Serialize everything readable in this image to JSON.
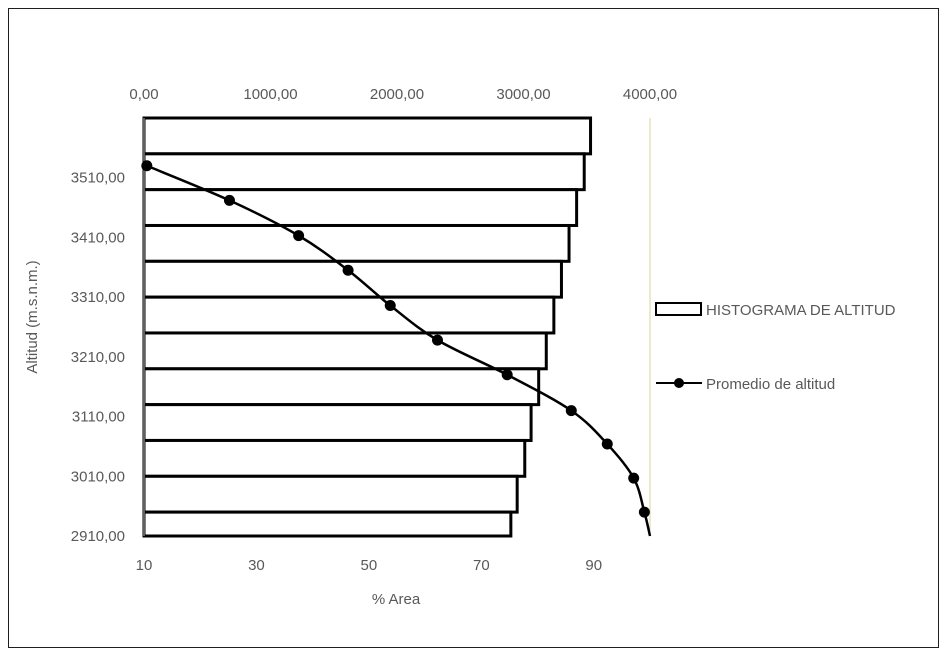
{
  "chart_data": {
    "type": "bar+line",
    "title": "",
    "top_axis": {
      "ticks": [
        "0,00",
        "1000,00",
        "2000,00",
        "3000,00",
        "4000,00"
      ],
      "range": [
        0,
        4000
      ]
    },
    "bottom_axis": {
      "label": "% Area",
      "ticks": [
        "10",
        "30",
        "50",
        "70",
        "90"
      ],
      "range": [
        10,
        100
      ]
    },
    "left_axis": {
      "label": "Altitud (m.s.n.m.)",
      "ticks": [
        "3510,00",
        "3410,00",
        "3310,00",
        "3210,00",
        "3110,00",
        "3010,00",
        "2910,00"
      ],
      "range": [
        2910,
        3610
      ]
    },
    "series": [
      {
        "name": "HISTOGRAMA DE ALTITUD",
        "kind": "horizontal-bar",
        "axis": "top",
        "altitude_bands": [
          [
            3550,
            3610
          ],
          [
            3490,
            3550
          ],
          [
            3430,
            3490
          ],
          [
            3370,
            3430
          ],
          [
            3310,
            3370
          ],
          [
            3250,
            3310
          ],
          [
            3190,
            3250
          ],
          [
            3130,
            3190
          ],
          [
            3070,
            3130
          ],
          [
            3010,
            3070
          ],
          [
            2950,
            3010
          ],
          [
            2910,
            2950
          ]
        ],
        "values": [
          3530,
          3480,
          3420,
          3360,
          3300,
          3240,
          3180,
          3120,
          3060,
          3010,
          2950,
          2900
        ]
      },
      {
        "name": "Promedio de altitud",
        "kind": "line",
        "axis": "bottom",
        "color": "#000000",
        "points": [
          {
            "x": 10.5,
            "y": 3530
          },
          {
            "x": 25.2,
            "y": 3472
          },
          {
            "x": 37.5,
            "y": 3413
          },
          {
            "x": 46.3,
            "y": 3355
          },
          {
            "x": 53.8,
            "y": 3296
          },
          {
            "x": 62.2,
            "y": 3238
          },
          {
            "x": 74.6,
            "y": 3180
          },
          {
            "x": 86.0,
            "y": 3120
          },
          {
            "x": 92.4,
            "y": 3064
          },
          {
            "x": 97.1,
            "y": 3007
          },
          {
            "x": 99.0,
            "y": 2950
          },
          {
            "x": 100.0,
            "y": 2910
          }
        ]
      }
    ],
    "legend": {
      "placement": "right",
      "entries": [
        "HISTOGRAMA DE ALTITUD",
        "Promedio de altitud"
      ]
    },
    "grid": false
  }
}
